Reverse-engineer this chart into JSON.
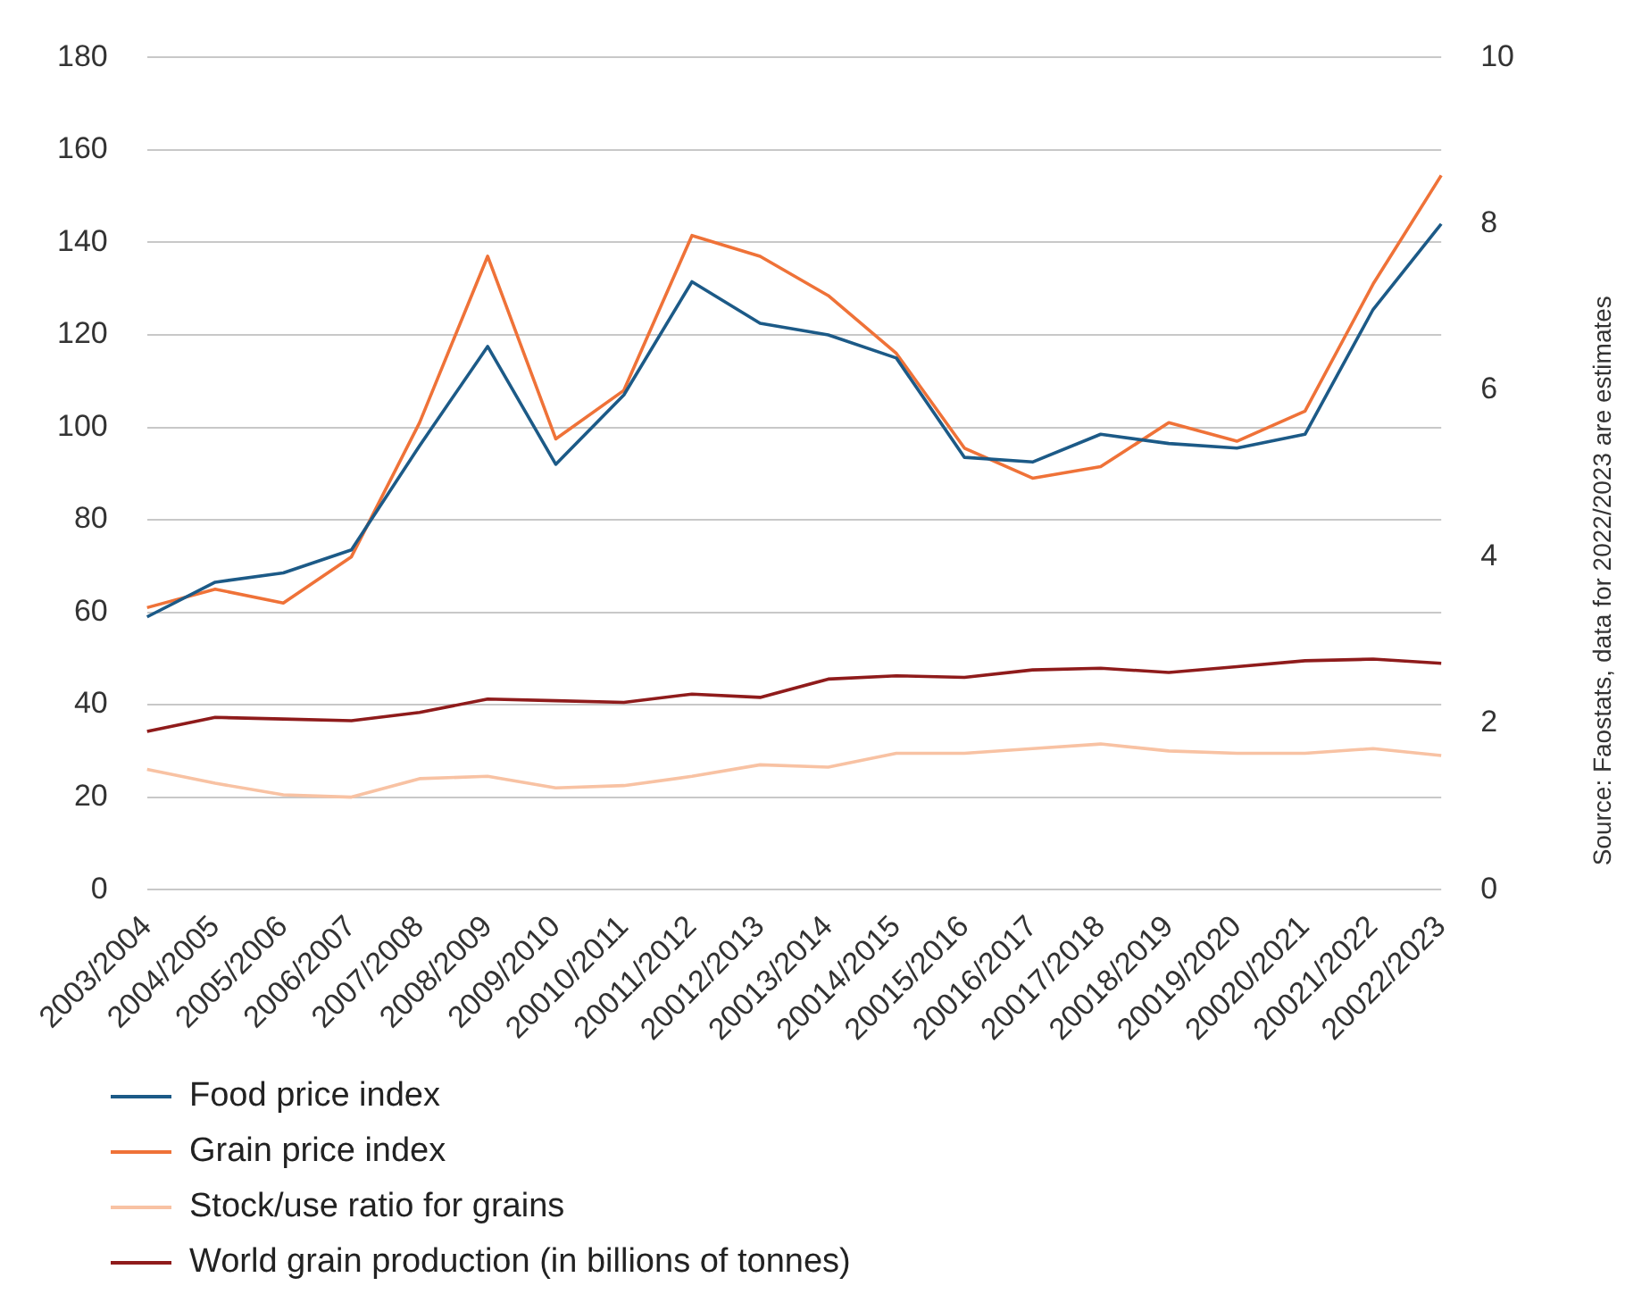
{
  "chart_data": {
    "type": "line",
    "categories": [
      "2003/2004",
      "2004/2005",
      "2005/2006",
      "2006/2007",
      "2007/2008",
      "2008/2009",
      "2009/2010",
      "20010/2011",
      "20011/2012",
      "20012/2013",
      "20013/2014",
      "20014/2015",
      "20015/2016",
      "20016/2017",
      "20017/2018",
      "20018/2019",
      "20019/2020",
      "20020/2021",
      "20021/2022",
      "20022/2023"
    ],
    "series": [
      {
        "name": "Food price index",
        "color": "#1c5a87",
        "values": [
          59,
          66.5,
          68.5,
          73.5,
          96,
          117.5,
          92,
          107,
          131.5,
          122.5,
          120,
          115,
          93.5,
          92.5,
          98.5,
          96.5,
          95.5,
          98.5,
          125.5,
          144
        ]
      },
      {
        "name": "Grain price index",
        "color": "#ef7238",
        "values": [
          61,
          65,
          62,
          72,
          101,
          137,
          97.5,
          108,
          141.5,
          137,
          128.5,
          116,
          95.5,
          89,
          91.5,
          101,
          97,
          103.5,
          131,
          154.5
        ]
      },
      {
        "name": "Stock/use ratio for grains",
        "color": "#f8c2a3",
        "values": [
          26,
          23,
          20.5,
          20,
          24,
          24.5,
          22,
          22.5,
          24.5,
          27,
          26.5,
          29.5,
          29.5,
          30.5,
          31.5,
          30,
          29.5,
          29.5,
          30.5,
          29
        ]
      },
      {
        "name": "World grain production (in billions of tonnes)",
        "color": "#8f1b1b",
        "axis": "y2",
        "values": [
          1.9,
          2.07,
          2.05,
          2.03,
          2.13,
          2.29,
          2.27,
          2.25,
          2.35,
          2.31,
          2.53,
          2.57,
          2.55,
          2.64,
          2.66,
          2.61,
          2.68,
          2.75,
          2.77,
          2.72
        ]
      }
    ],
    "ylim": [
      0,
      180
    ],
    "yticks": [
      0,
      20,
      40,
      60,
      80,
      100,
      120,
      140,
      160,
      180
    ],
    "y2lim": [
      0,
      10
    ],
    "y2ticks": [
      0,
      2,
      4,
      6,
      8,
      10
    ],
    "grid": "y",
    "legend": "bottom",
    "marker": "none",
    "line_style": "solid",
    "annotations": [
      "Source: Faostats, data for 2022/2023 are estimates"
    ]
  }
}
